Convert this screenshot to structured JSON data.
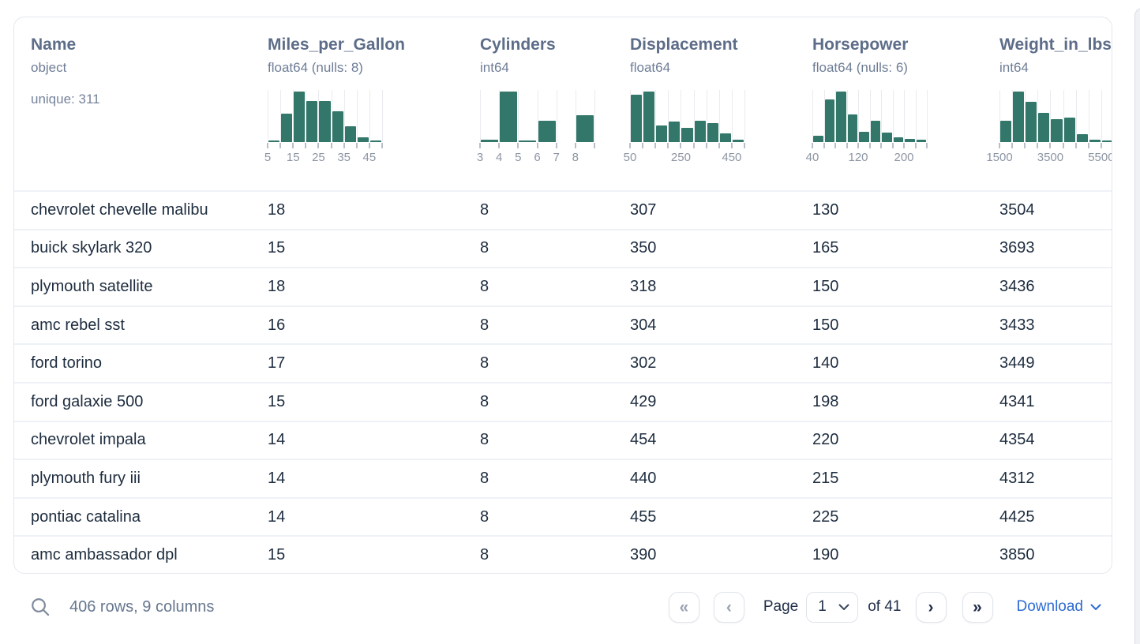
{
  "colors": {
    "bar": "#33776a",
    "accent_blue": "#2e6bd3"
  },
  "table": {
    "columns": [
      {
        "name": "Name",
        "type": "object",
        "unique": "unique: 311",
        "histogram": null
      },
      {
        "name": "Miles_per_Gallon",
        "type": "float64 (nulls: 8)",
        "histogram": {
          "bars": [
            0.03,
            0.56,
            1.0,
            0.81,
            0.81,
            0.61,
            0.31,
            0.1,
            0.02
          ],
          "ticks": [
            {
              "label": "5",
              "edge": 0
            },
            {
              "label": "15",
              "edge": 2
            },
            {
              "label": "25",
              "edge": 4
            },
            {
              "label": "35",
              "edge": 6
            },
            {
              "label": "45",
              "edge": 8
            }
          ]
        }
      },
      {
        "name": "Cylinders",
        "type": "int64",
        "histogram": {
          "bars": [
            0.04,
            1.0,
            0.02,
            0.42,
            0,
            0.53
          ],
          "ticks": [
            {
              "label": "3",
              "edge": 0
            },
            {
              "label": "4",
              "edge": 1
            },
            {
              "label": "5",
              "edge": 2
            },
            {
              "label": "6",
              "edge": 3
            },
            {
              "label": "7",
              "edge": 4
            },
            {
              "label": "8",
              "edge": 5
            }
          ]
        }
      },
      {
        "name": "Displacement",
        "type": "float64",
        "histogram": {
          "bars": [
            0.93,
            1.0,
            0.33,
            0.4,
            0.28,
            0.42,
            0.37,
            0.17,
            0.05
          ],
          "ticks": [
            {
              "label": "50",
              "edge": 0
            },
            {
              "label": "250",
              "edge": 4
            },
            {
              "label": "450",
              "edge": 8
            }
          ]
        }
      },
      {
        "name": "Horsepower",
        "type": "float64 (nulls: 6)",
        "histogram": {
          "bars": [
            0.13,
            0.85,
            1.0,
            0.55,
            0.2,
            0.42,
            0.18,
            0.1,
            0.06,
            0.05
          ],
          "ticks": [
            {
              "label": "40",
              "edge": 0
            },
            {
              "label": "120",
              "edge": 4
            },
            {
              "label": "200",
              "edge": 8
            }
          ]
        }
      },
      {
        "name": "Weight_in_lbs",
        "type": "int64",
        "histogram": {
          "bars": [
            0.42,
            1.0,
            0.8,
            0.58,
            0.45,
            0.48,
            0.16,
            0.04,
            0.01
          ],
          "ticks": [
            {
              "label": "1500",
              "edge": 0
            },
            {
              "label": "3500",
              "edge": 4
            },
            {
              "label": "5500",
              "edge": 8
            }
          ]
        }
      }
    ],
    "rows": [
      [
        "chevrolet chevelle malibu",
        "18",
        "8",
        "307",
        "130",
        "3504"
      ],
      [
        "buick skylark 320",
        "15",
        "8",
        "350",
        "165",
        "3693"
      ],
      [
        "plymouth satellite",
        "18",
        "8",
        "318",
        "150",
        "3436"
      ],
      [
        "amc rebel sst",
        "16",
        "8",
        "304",
        "150",
        "3433"
      ],
      [
        "ford torino",
        "17",
        "8",
        "302",
        "140",
        "3449"
      ],
      [
        "ford galaxie 500",
        "15",
        "8",
        "429",
        "198",
        "4341"
      ],
      [
        "chevrolet impala",
        "14",
        "8",
        "454",
        "220",
        "4354"
      ],
      [
        "plymouth fury iii",
        "14",
        "8",
        "440",
        "215",
        "4312"
      ],
      [
        "pontiac catalina",
        "14",
        "8",
        "455",
        "225",
        "4425"
      ],
      [
        "amc ambassador dpl",
        "15",
        "8",
        "390",
        "190",
        "3850"
      ]
    ]
  },
  "footer": {
    "summary": "406 rows, 9 columns",
    "first_glyph": "«",
    "prev_glyph": "‹",
    "page_label": "Page",
    "page_value": "1",
    "of_label": "of 41",
    "next_glyph": "›",
    "last_glyph": "»",
    "download_label": "Download"
  }
}
